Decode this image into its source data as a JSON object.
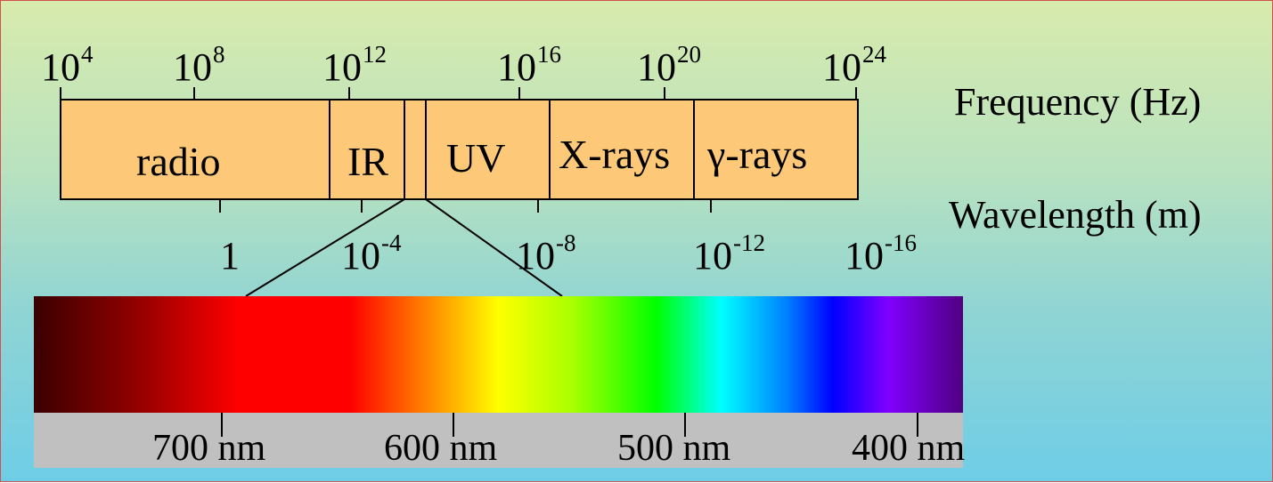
{
  "frequency_scale": {
    "title": "Frequency (Hz)",
    "ticks": [
      {
        "base": "10",
        "exp": "4"
      },
      {
        "base": "10",
        "exp": "8"
      },
      {
        "base": "10",
        "exp": "12"
      },
      {
        "base": "10",
        "exp": "16"
      },
      {
        "base": "10",
        "exp": "20"
      },
      {
        "base": "10",
        "exp": "24"
      }
    ]
  },
  "wavelength_scale": {
    "title": "Wavelength (m)",
    "ticks": [
      {
        "base": "1",
        "exp": ""
      },
      {
        "base": "10",
        "exp": "-4"
      },
      {
        "base": "10",
        "exp": "-8"
      },
      {
        "base": "10",
        "exp": "-12"
      },
      {
        "base": "10",
        "exp": "-16"
      }
    ]
  },
  "bands": [
    {
      "label": "radio"
    },
    {
      "label": "IR"
    },
    {
      "label": ""
    },
    {
      "label": "UV"
    },
    {
      "label": "X-rays"
    },
    {
      "label": "γ-rays"
    }
  ],
  "visible_spectrum": {
    "ticks": [
      "700 nm",
      "600 nm",
      "500 nm",
      "400 nm"
    ]
  },
  "colors": {
    "band_fill": "#fdc878",
    "scale_bar": "#c0c0c0",
    "border": "#d25050"
  }
}
